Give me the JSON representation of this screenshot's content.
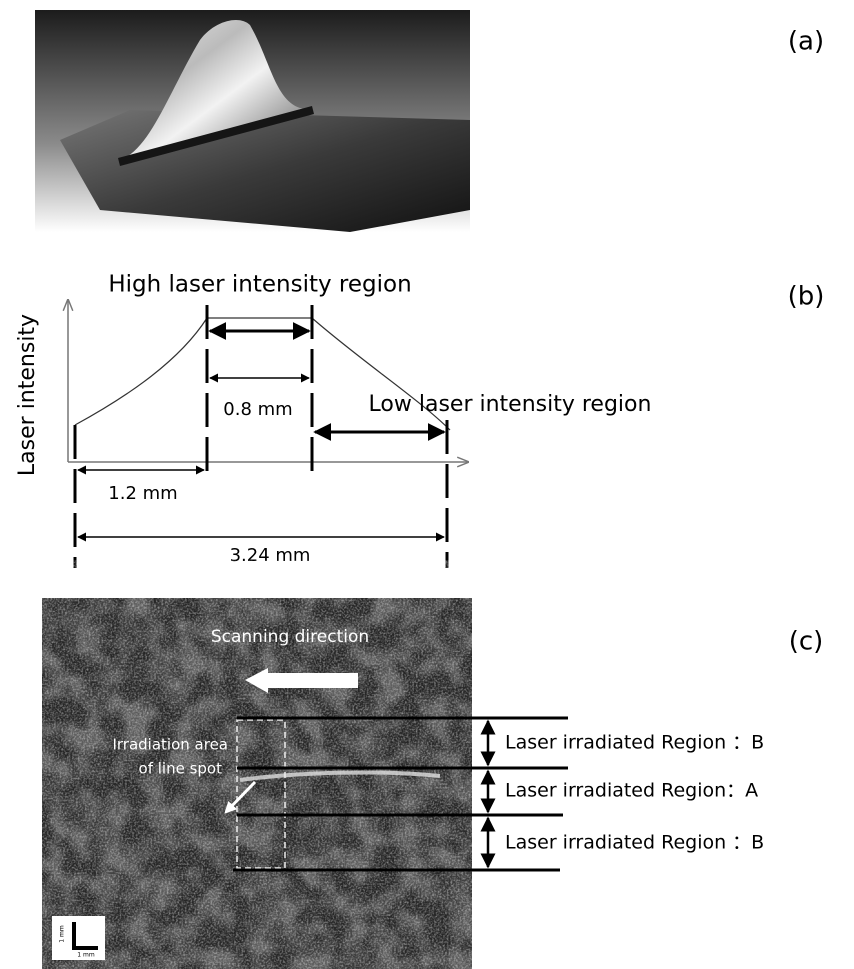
{
  "panels": [
    {
      "label": "(a)"
    },
    {
      "label": "(b)",
      "y_axis_label": "Laser intensity",
      "high_region": "High laser intensity region",
      "low_region": "Low laser intensity region",
      "widths": [
        "0.8 mm",
        "1.2 mm",
        "3.24 mm"
      ]
    },
    {
      "label": "(c)",
      "scan_direction": "Scanning direction",
      "irradiation_area": [
        "Irradiation area",
        "of line spot"
      ],
      "regions": [
        "Laser irradiated Region ：B",
        "Laser irradiated Region：A",
        "Laser irradiated Region ：B"
      ],
      "scale_bar": "1 mm"
    }
  ]
}
